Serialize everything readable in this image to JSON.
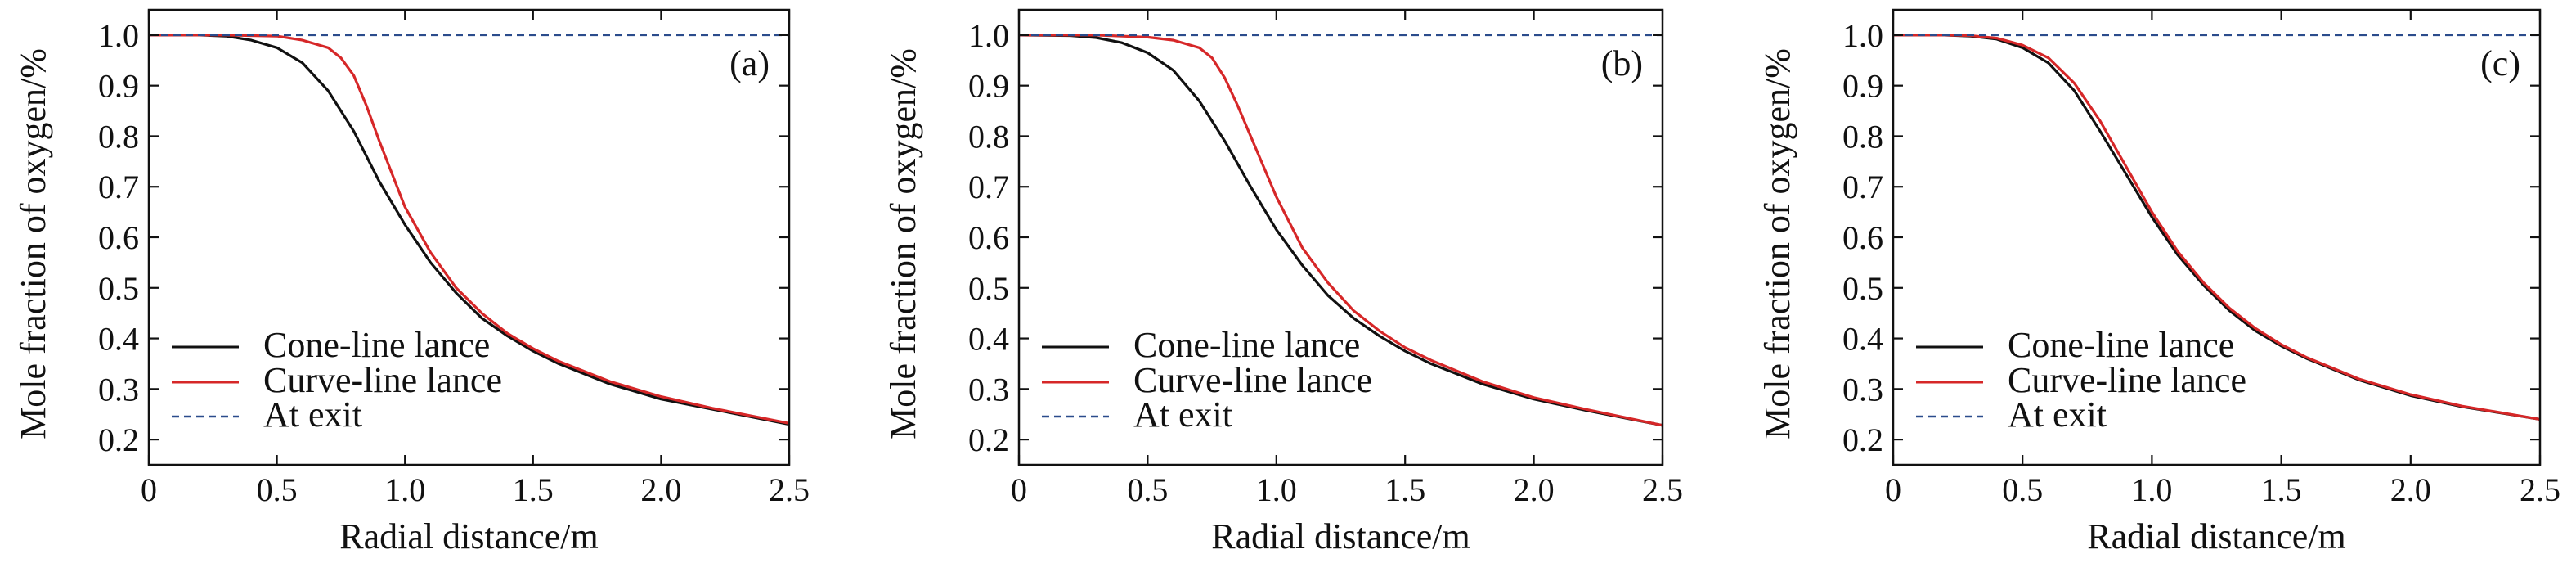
{
  "colors": {
    "cone": "#111111",
    "curve": "#d62728",
    "exit": "#2b4c8c",
    "axis": "#111111"
  },
  "chart_data": [
    {
      "type": "line",
      "panel_label": "(a)",
      "xlabel": "Radial distance/m",
      "ylabel": "Mole fraction of oxygen/%",
      "xlim": [
        0,
        2.5
      ],
      "ylim": [
        0.15,
        1.05
      ],
      "xticks": [
        "0",
        "0.5",
        "1.0",
        "1.5",
        "2.0",
        "2.5"
      ],
      "yticks": [
        "0.2",
        "0.3",
        "0.4",
        "0.5",
        "0.6",
        "0.7",
        "0.8",
        "0.9",
        "1.0"
      ],
      "legend_position": "bottom-left",
      "series": [
        {
          "name": "Cone-line lance",
          "style": "solid",
          "x": [
            0,
            0.2,
            0.3,
            0.4,
            0.5,
            0.6,
            0.7,
            0.8,
            0.9,
            1.0,
            1.1,
            1.2,
            1.3,
            1.4,
            1.5,
            1.6,
            1.8,
            2.0,
            2.2,
            2.5
          ],
          "y": [
            1.0,
            1.0,
            0.998,
            0.99,
            0.975,
            0.945,
            0.89,
            0.81,
            0.71,
            0.625,
            0.55,
            0.49,
            0.44,
            0.405,
            0.375,
            0.35,
            0.31,
            0.28,
            0.26,
            0.23
          ]
        },
        {
          "name": "Curve-line lance",
          "style": "solid",
          "x": [
            0,
            0.3,
            0.5,
            0.6,
            0.7,
            0.75,
            0.8,
            0.85,
            0.9,
            1.0,
            1.1,
            1.2,
            1.3,
            1.4,
            1.5,
            1.6,
            1.8,
            2.0,
            2.2,
            2.5
          ],
          "y": [
            1.0,
            1.0,
            0.998,
            0.99,
            0.975,
            0.955,
            0.92,
            0.86,
            0.79,
            0.66,
            0.57,
            0.5,
            0.45,
            0.41,
            0.38,
            0.355,
            0.315,
            0.285,
            0.262,
            0.232
          ]
        },
        {
          "name": "At exit",
          "style": "dashed",
          "x": [
            0,
            2.5
          ],
          "y": [
            1.0,
            1.0
          ]
        }
      ]
    },
    {
      "type": "line",
      "panel_label": "(b)",
      "xlabel": "Radial distance/m",
      "ylabel": "Mole fraction of oxygen/%",
      "xlim": [
        0,
        2.5
      ],
      "ylim": [
        0.15,
        1.05
      ],
      "xticks": [
        "0",
        "0.5",
        "1.0",
        "1.5",
        "2.0",
        "2.5"
      ],
      "yticks": [
        "0.2",
        "0.3",
        "0.4",
        "0.5",
        "0.6",
        "0.7",
        "0.8",
        "0.9",
        "1.0"
      ],
      "legend_position": "bottom-left",
      "series": [
        {
          "name": "Cone-line lance",
          "style": "solid",
          "x": [
            0,
            0.2,
            0.3,
            0.4,
            0.5,
            0.6,
            0.7,
            0.8,
            0.9,
            1.0,
            1.1,
            1.2,
            1.3,
            1.4,
            1.5,
            1.6,
            1.8,
            2.0,
            2.2,
            2.5
          ],
          "y": [
            1.0,
            0.999,
            0.995,
            0.985,
            0.965,
            0.93,
            0.87,
            0.79,
            0.7,
            0.615,
            0.545,
            0.485,
            0.44,
            0.405,
            0.375,
            0.35,
            0.31,
            0.28,
            0.258,
            0.228
          ]
        },
        {
          "name": "Curve-line lance",
          "style": "solid",
          "x": [
            0,
            0.3,
            0.5,
            0.6,
            0.7,
            0.75,
            0.8,
            0.85,
            0.9,
            1.0,
            1.1,
            1.2,
            1.3,
            1.4,
            1.5,
            1.6,
            1.8,
            2.0,
            2.2,
            2.5
          ],
          "y": [
            1.0,
            1.0,
            0.996,
            0.99,
            0.975,
            0.955,
            0.915,
            0.86,
            0.8,
            0.68,
            0.58,
            0.51,
            0.455,
            0.415,
            0.382,
            0.357,
            0.315,
            0.283,
            0.26,
            0.228
          ]
        },
        {
          "name": "At exit",
          "style": "dashed",
          "x": [
            0,
            2.5
          ],
          "y": [
            1.0,
            1.0
          ]
        }
      ]
    },
    {
      "type": "line",
      "panel_label": "(c)",
      "xlabel": "Radial distance/m",
      "ylabel": "Mole fraction of oxygen/%",
      "xlim": [
        0,
        2.5
      ],
      "ylim": [
        0.15,
        1.05
      ],
      "xticks": [
        "0",
        "0.5",
        "1.0",
        "1.5",
        "2.0",
        "2.5"
      ],
      "yticks": [
        "0.2",
        "0.3",
        "0.4",
        "0.5",
        "0.6",
        "0.7",
        "0.8",
        "0.9",
        "1.0"
      ],
      "legend_position": "bottom-left",
      "series": [
        {
          "name": "Cone-line lance",
          "style": "solid",
          "x": [
            0,
            0.2,
            0.3,
            0.4,
            0.5,
            0.6,
            0.7,
            0.8,
            0.9,
            1.0,
            1.1,
            1.2,
            1.3,
            1.4,
            1.5,
            1.6,
            1.8,
            2.0,
            2.2,
            2.5
          ],
          "y": [
            1.0,
            1.0,
            0.998,
            0.992,
            0.975,
            0.945,
            0.89,
            0.81,
            0.725,
            0.64,
            0.565,
            0.505,
            0.455,
            0.415,
            0.385,
            0.36,
            0.318,
            0.287,
            0.265,
            0.24
          ]
        },
        {
          "name": "Curve-line lance",
          "style": "solid",
          "x": [
            0,
            0.2,
            0.3,
            0.4,
            0.5,
            0.6,
            0.7,
            0.8,
            0.9,
            1.0,
            1.1,
            1.2,
            1.3,
            1.4,
            1.5,
            1.6,
            1.8,
            2.0,
            2.2,
            2.5
          ],
          "y": [
            1.0,
            1.0,
            0.999,
            0.994,
            0.98,
            0.955,
            0.905,
            0.83,
            0.74,
            0.65,
            0.572,
            0.51,
            0.46,
            0.42,
            0.388,
            0.362,
            0.32,
            0.289,
            0.266,
            0.24
          ]
        },
        {
          "name": "At exit",
          "style": "dashed",
          "x": [
            0,
            2.5
          ],
          "y": [
            1.0,
            1.0
          ]
        }
      ]
    }
  ]
}
